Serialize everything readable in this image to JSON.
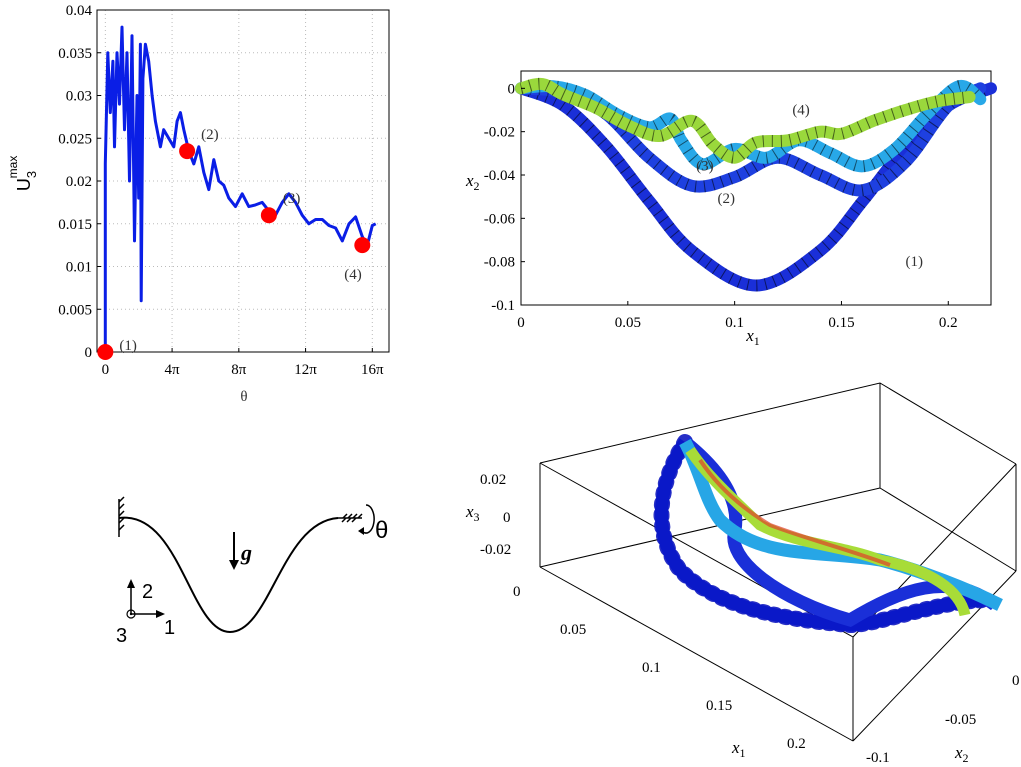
{
  "chart_data": [
    {
      "type": "line",
      "ylabel_main": "U",
      "ylabel_sub": "3",
      "ylabel_sup": "max",
      "xlabel": "θ",
      "xlim": [
        -0.5,
        17
      ],
      "ylim": [
        0,
        0.04
      ],
      "grid": true,
      "x_ticks": [
        {
          "v": 0,
          "t": "0"
        },
        {
          "v": 4,
          "t": "4π"
        },
        {
          "v": 8,
          "t": "8π"
        },
        {
          "v": 12,
          "t": "12π"
        },
        {
          "v": 16,
          "t": "16π"
        }
      ],
      "y_ticks": [
        {
          "v": 0,
          "t": "0"
        },
        {
          "v": 0.005,
          "t": "0.005"
        },
        {
          "v": 0.01,
          "t": "0.01"
        },
        {
          "v": 0.015,
          "t": "0.015"
        },
        {
          "v": 0.02,
          "t": "0.02"
        },
        {
          "v": 0.025,
          "t": "0.025"
        },
        {
          "v": 0.03,
          "t": "0.03"
        },
        {
          "v": 0.035,
          "t": "0.035"
        },
        {
          "v": 0.04,
          "t": "0.04"
        }
      ],
      "series": [
        {
          "color": "#0a1ee6",
          "points": [
            [
              0,
              0
            ],
            [
              0,
              0.022
            ],
            [
              0.15,
              0.035
            ],
            [
              0.3,
              0.028
            ],
            [
              0.45,
              0.034
            ],
            [
              0.55,
              0.024
            ],
            [
              0.7,
              0.035
            ],
            [
              0.85,
              0.029
            ],
            [
              1.0,
              0.038
            ],
            [
              1.15,
              0.026
            ],
            [
              1.3,
              0.035
            ],
            [
              1.45,
              0.02
            ],
            [
              1.6,
              0.037
            ],
            [
              1.75,
              0.013
            ],
            [
              1.9,
              0.03
            ],
            [
              2.0,
              0.018
            ],
            [
              2.1,
              0.036
            ],
            [
              2.15,
              0.006
            ],
            [
              2.25,
              0.032
            ],
            [
              2.4,
              0.036
            ],
            [
              2.6,
              0.034
            ],
            [
              2.8,
              0.03
            ],
            [
              3.0,
              0.027
            ],
            [
              3.3,
              0.024
            ],
            [
              3.5,
              0.026
            ],
            [
              3.8,
              0.025
            ],
            [
              4.1,
              0.024
            ],
            [
              4.3,
              0.027
            ],
            [
              4.5,
              0.028
            ],
            [
              4.7,
              0.026
            ],
            [
              5.0,
              0.0235
            ],
            [
              5.3,
              0.022
            ],
            [
              5.6,
              0.024
            ],
            [
              5.9,
              0.021
            ],
            [
              6.2,
              0.019
            ],
            [
              6.5,
              0.0225
            ],
            [
              6.8,
              0.02
            ],
            [
              7.1,
              0.0195
            ],
            [
              7.4,
              0.018
            ],
            [
              7.8,
              0.017
            ],
            [
              8.2,
              0.0185
            ],
            [
              8.6,
              0.017
            ],
            [
              9.0,
              0.0172
            ],
            [
              9.4,
              0.0175
            ],
            [
              9.8,
              0.0165
            ],
            [
              10.2,
              0.016
            ],
            [
              10.6,
              0.0175
            ],
            [
              11.0,
              0.0185
            ],
            [
              11.4,
              0.0175
            ],
            [
              11.8,
              0.016
            ],
            [
              12.2,
              0.015
            ],
            [
              12.6,
              0.0155
            ],
            [
              13.0,
              0.0155
            ],
            [
              13.4,
              0.0148
            ],
            [
              13.8,
              0.0145
            ],
            [
              14.2,
              0.013
            ],
            [
              14.6,
              0.015
            ],
            [
              15.0,
              0.0158
            ],
            [
              15.4,
              0.0135
            ],
            [
              15.7,
              0.0125
            ],
            [
              16.0,
              0.0148
            ],
            [
              16.2,
              0.015
            ]
          ]
        }
      ],
      "markers": [
        {
          "x": 0,
          "y": 0,
          "label": "(1)"
        },
        {
          "x": 4.9,
          "y": 0.0235,
          "label": "(2)"
        },
        {
          "x": 9.8,
          "y": 0.016,
          "label": "(3)"
        },
        {
          "x": 15.4,
          "y": 0.0125,
          "label": "(4)"
        }
      ],
      "marker_color": "#ff0000"
    },
    {
      "type": "line",
      "xlabel": "x",
      "xlabel_sub": "1",
      "ylabel": "x",
      "ylabel_sub": "2",
      "xlim": [
        0,
        0.22
      ],
      "ylim": [
        -0.1,
        0.008
      ],
      "x_ticks": [
        {
          "v": 0,
          "t": "0"
        },
        {
          "v": 0.05,
          "t": "0.05"
        },
        {
          "v": 0.1,
          "t": "0.1"
        },
        {
          "v": 0.15,
          "t": "0.15"
        },
        {
          "v": 0.2,
          "t": "0.2"
        }
      ],
      "y_ticks": [
        {
          "v": 0,
          "t": "0"
        },
        {
          "v": -0.02,
          "t": "-0.02"
        },
        {
          "v": -0.04,
          "t": "-0.04"
        },
        {
          "v": -0.06,
          "t": "-0.06"
        },
        {
          "v": -0.08,
          "t": "-0.08"
        },
        {
          "v": -0.1,
          "t": "-0.1"
        }
      ],
      "series": [
        {
          "label": "(1)",
          "color": "#1a2fd8",
          "points": [
            [
              0,
              0
            ],
            [
              0.02,
              -0.008
            ],
            [
              0.04,
              -0.027
            ],
            [
              0.06,
              -0.052
            ],
            [
              0.08,
              -0.075
            ],
            [
              0.11,
              -0.091
            ],
            [
              0.14,
              -0.075
            ],
            [
              0.16,
              -0.052
            ],
            [
              0.18,
              -0.027
            ],
            [
              0.2,
              -0.008
            ],
            [
              0.22,
              0
            ]
          ]
        },
        {
          "label": "(2)",
          "color": "#1e40e0",
          "points": [
            [
              0,
              0
            ],
            [
              0.02,
              -0.002
            ],
            [
              0.04,
              -0.012
            ],
            [
              0.06,
              -0.032
            ],
            [
              0.08,
              -0.045
            ],
            [
              0.1,
              -0.041
            ],
            [
              0.12,
              -0.032
            ],
            [
              0.14,
              -0.04
            ],
            [
              0.16,
              -0.047
            ],
            [
              0.18,
              -0.034
            ],
            [
              0.2,
              -0.008
            ],
            [
              0.215,
              0
            ]
          ]
        },
        {
          "label": "(3)",
          "color": "#28a8e8",
          "points": [
            [
              0,
              0
            ],
            [
              0.015,
              0.001
            ],
            [
              0.03,
              -0.003
            ],
            [
              0.045,
              -0.012
            ],
            [
              0.06,
              -0.018
            ],
            [
              0.07,
              -0.014
            ],
            [
              0.075,
              -0.024
            ],
            [
              0.085,
              -0.035
            ],
            [
              0.1,
              -0.028
            ],
            [
              0.115,
              -0.032
            ],
            [
              0.13,
              -0.024
            ],
            [
              0.145,
              -0.03
            ],
            [
              0.16,
              -0.036
            ],
            [
              0.175,
              -0.028
            ],
            [
              0.19,
              -0.012
            ],
            [
              0.205,
              0.001
            ],
            [
              0.215,
              -0.005
            ]
          ]
        },
        {
          "label": "(4)",
          "color": "#9ad83c",
          "points": [
            [
              0,
              0
            ],
            [
              0.01,
              0.002
            ],
            [
              0.02,
              -0.003
            ],
            [
              0.035,
              -0.009
            ],
            [
              0.05,
              -0.017
            ],
            [
              0.065,
              -0.022
            ],
            [
              0.08,
              -0.015
            ],
            [
              0.09,
              -0.026
            ],
            [
              0.1,
              -0.032
            ],
            [
              0.11,
              -0.025
            ],
            [
              0.125,
              -0.024
            ],
            [
              0.14,
              -0.02
            ],
            [
              0.15,
              -0.021
            ],
            [
              0.165,
              -0.015
            ],
            [
              0.18,
              -0.01
            ],
            [
              0.195,
              -0.006
            ],
            [
              0.21,
              -0.004
            ]
          ]
        }
      ],
      "annotations": [
        {
          "text": "(1)",
          "x": 0.18,
          "y": -0.082
        },
        {
          "text": "(2)",
          "x": 0.092,
          "y": -0.053
        },
        {
          "text": "(3)",
          "x": 0.082,
          "y": -0.038
        },
        {
          "text": "(4)",
          "x": 0.127,
          "y": -0.012
        }
      ]
    },
    {
      "type": "line",
      "xlabel": "x",
      "xlabel_sub": "1",
      "ylabel": "x",
      "ylabel_sub": "2",
      "zlabel": "x",
      "zlabel_sub": "3",
      "x1_ticks": [
        "0",
        "0.05",
        "0.1",
        "0.15",
        "0.2"
      ],
      "x2_ticks": [
        "-0.1",
        "-0.05",
        "0"
      ],
      "x3_ticks": [
        "0.02",
        "0",
        "-0.02"
      ]
    }
  ],
  "schematic": {
    "gravity_label": "g",
    "rotation_label": "θ",
    "axis_1": "1",
    "axis_2": "2",
    "axis_3": "3"
  }
}
